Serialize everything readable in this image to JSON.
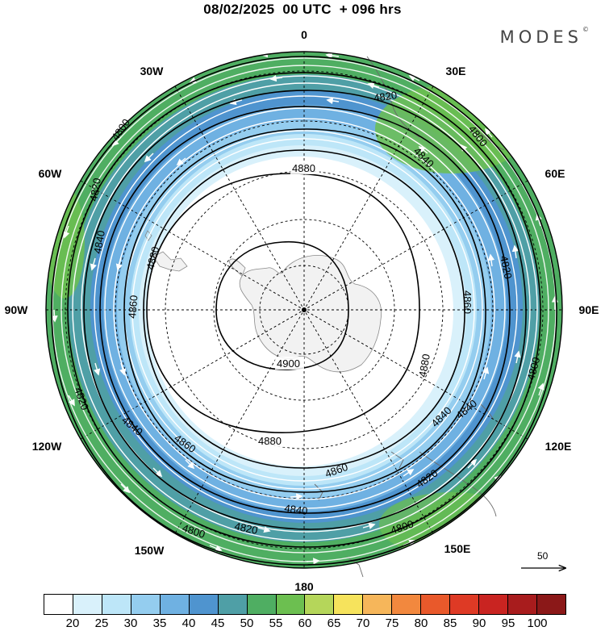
{
  "header": {
    "title": "08/02/2025  00 UTC  + 096 hrs",
    "brand": "MODES",
    "brand_mark": "©"
  },
  "map": {
    "projection": "south polar stereographic",
    "longitude_labels": {
      "top": "0",
      "r30e": "30E",
      "r60e": "60E",
      "r90e": "90E",
      "r120e": "120E",
      "r150e": "150E",
      "bottom": "180",
      "l150w": "150W",
      "l120w": "120W",
      "l90w": "90W",
      "l60w": "60W",
      "l30w": "30W"
    },
    "contour_labels": [
      "4900",
      "4880",
      "4880",
      "4880",
      "4880",
      "4860",
      "4860",
      "4860",
      "4860",
      "4840",
      "4840",
      "4840",
      "4840",
      "4840",
      "4840",
      "4820",
      "4820",
      "4820",
      "4820",
      "4820",
      "4820",
      "4800",
      "4800",
      "4800",
      "4800",
      "4800"
    ],
    "reference_vector": "50"
  },
  "colorbar": {
    "colors": [
      "#ffffff",
      "#d9f1fb",
      "#bde6f8",
      "#94cdef",
      "#6fb1e2",
      "#4f94cf",
      "#4f9fa6",
      "#4fae62",
      "#6cbf50",
      "#b5d65a",
      "#f6e35c",
      "#f6b65a",
      "#f2883e",
      "#e9592b",
      "#de3a25",
      "#c92421",
      "#a81c1d",
      "#8b1818"
    ],
    "ticks": [
      "20",
      "25",
      "30",
      "35",
      "40",
      "45",
      "50",
      "55",
      "60",
      "65",
      "70",
      "75",
      "80",
      "85",
      "90",
      "95",
      "100"
    ]
  }
}
